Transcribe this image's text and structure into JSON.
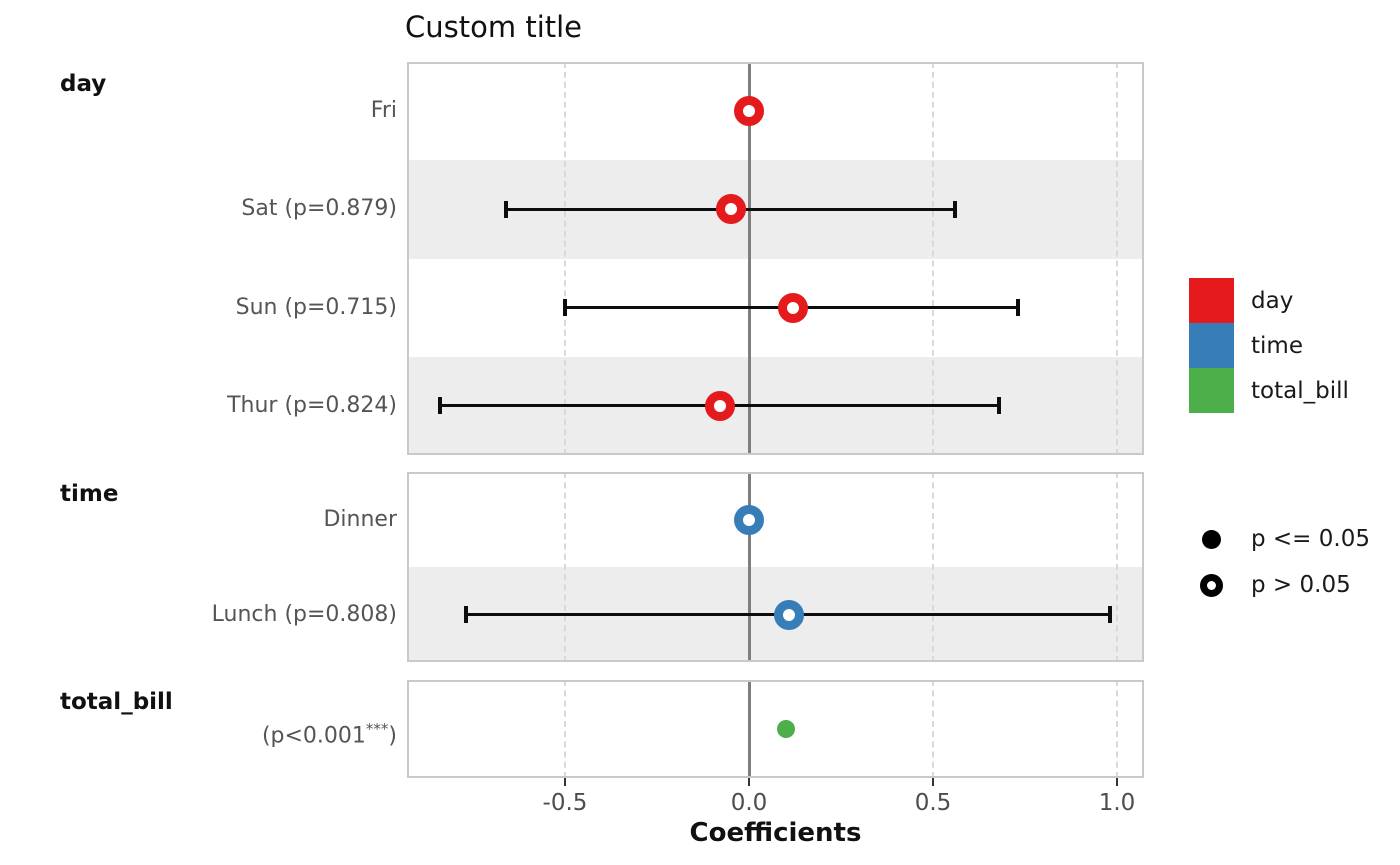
{
  "chart_data": {
    "type": "scatter",
    "subtype": "coefficient-forest-plot",
    "title": "Custom title",
    "xlabel": "Coefficients",
    "x_ticks": [
      {
        "label": "-0.5",
        "value": -0.5
      },
      {
        "label": "0.0",
        "value": 0.0
      },
      {
        "label": "0.5",
        "value": 0.5
      },
      {
        "label": "1.0",
        "value": 1.0
      }
    ],
    "x_gridlines": [
      -0.5,
      0.5,
      1.0
    ],
    "zero_line": 0.0,
    "xlim": [
      -0.93,
      1.07
    ],
    "grid": "vertical-dashed",
    "legend_position": "right",
    "panels": [
      {
        "header": "day",
        "color": "#e41a1c",
        "rows": [
          {
            "label": "Fri",
            "estimate": 0.0,
            "ci": null,
            "p_value": null,
            "significant": false
          },
          {
            "label": "Sat (p=0.879)",
            "estimate": -0.05,
            "ci": [
              -0.66,
              0.56
            ],
            "p_value": 0.879,
            "significant": false
          },
          {
            "label": "Sun (p=0.715)",
            "estimate": 0.12,
            "ci": [
              -0.5,
              0.73
            ],
            "p_value": 0.715,
            "significant": false
          },
          {
            "label": "Thur (p=0.824)",
            "estimate": -0.08,
            "ci": [
              -0.84,
              0.68
            ],
            "p_value": 0.824,
            "significant": false
          }
        ]
      },
      {
        "header": "time",
        "color": "#377eb8",
        "rows": [
          {
            "label": "Dinner",
            "estimate": 0.0,
            "ci": null,
            "p_value": null,
            "significant": false
          },
          {
            "label": "Lunch (p=0.808)",
            "estimate": 0.11,
            "ci": [
              -0.77,
              0.98
            ],
            "p_value": 0.808,
            "significant": false
          }
        ]
      },
      {
        "header": "total_bill",
        "color": "#4daf4a",
        "rows": [
          {
            "label": "(p<0.001***)",
            "estimate": 0.1,
            "ci": null,
            "p_value": "<0.001",
            "significant": true
          }
        ]
      }
    ],
    "legend_colors": [
      {
        "label": "day",
        "color": "#e41a1c"
      },
      {
        "label": "time",
        "color": "#377eb8"
      },
      {
        "label": "total_bill",
        "color": "#4daf4a"
      }
    ],
    "legend_shapes": [
      {
        "label": "p <= 0.05",
        "type": "filled"
      },
      {
        "label": "p > 0.05",
        "type": "open"
      }
    ],
    "marker_colors": {
      "day": "#e41a1c",
      "time": "#377eb8",
      "total_bill": "#4daf4a",
      "error_bar": "#0d0d0d",
      "zero_line": "#7f7f7f",
      "stripe": "#ededed"
    }
  }
}
